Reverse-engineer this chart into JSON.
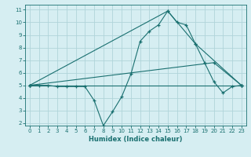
{
  "title": "",
  "xlabel": "Humidex (Indice chaleur)",
  "ylabel": "",
  "bg_color": "#d6eef2",
  "grid_color": "#b0d4da",
  "line_color": "#1a7070",
  "series1_x": [
    0,
    1,
    2,
    3,
    4,
    5,
    6,
    7,
    8,
    9,
    10,
    11,
    12,
    13,
    14,
    15,
    16,
    17,
    18,
    19,
    20,
    21,
    22,
    23
  ],
  "series1_y": [
    5,
    5,
    5,
    4.9,
    4.9,
    4.9,
    4.9,
    3.8,
    1.8,
    2.9,
    4.1,
    5.9,
    8.5,
    9.3,
    9.8,
    10.9,
    10.0,
    9.8,
    8.3,
    6.8,
    5.3,
    4.4,
    4.9,
    5.0
  ],
  "series2_x": [
    0,
    15,
    18,
    23
  ],
  "series2_y": [
    5,
    10.9,
    8.3,
    5.0
  ],
  "series3_x": [
    0,
    23
  ],
  "series3_y": [
    5,
    5.0
  ],
  "series4_x": [
    0,
    20,
    23
  ],
  "series4_y": [
    5,
    6.8,
    5.0
  ],
  "xlim": [
    -0.5,
    23.5
  ],
  "ylim": [
    1.8,
    11.4
  ],
  "yticks": [
    2,
    3,
    4,
    5,
    6,
    7,
    8,
    9,
    10,
    11
  ],
  "xticks": [
    0,
    1,
    2,
    3,
    4,
    5,
    6,
    7,
    8,
    9,
    10,
    11,
    12,
    13,
    14,
    15,
    16,
    17,
    18,
    19,
    20,
    21,
    22,
    23
  ]
}
